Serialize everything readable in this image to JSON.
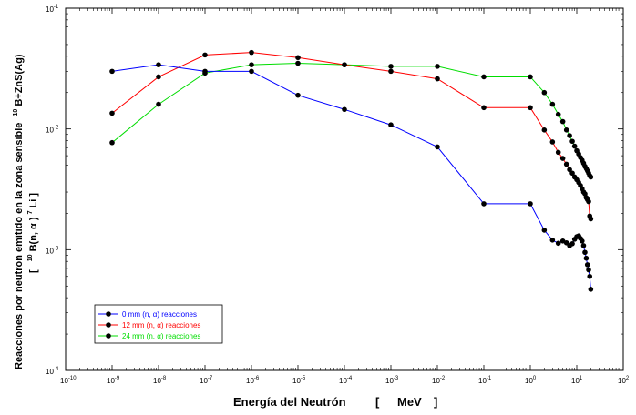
{
  "chart_data": {
    "type": "line",
    "xscale": "log",
    "yscale": "log",
    "xlim": [
      1e-10,
      100
    ],
    "ylim": [
      0.0001,
      0.1
    ],
    "grid": false,
    "legend_position": "bottom-left",
    "xlabel_parts": {
      "main": "Energía del Neutrón",
      "bracket_open": "[",
      "unit": "MeV",
      "bracket_close": "]"
    },
    "ylabel": {
      "line1": "Reacciones por neutron emitido en la zona sensible",
      "sup1": "10",
      "line1_end": "B+ZnS(Ag)",
      "line2_open": "[",
      "sup2": "10",
      "line2_mid": "B(n, α )",
      "sup3": "7",
      "line2_end": "Li ]"
    },
    "x_ticks": [
      {
        "base": "10",
        "exp": "-10"
      },
      {
        "base": "10",
        "exp": "-9"
      },
      {
        "base": "10",
        "exp": "-8"
      },
      {
        "base": "10",
        "exp": "-7"
      },
      {
        "base": "10",
        "exp": "-6"
      },
      {
        "base": "10",
        "exp": "-5"
      },
      {
        "base": "10",
        "exp": "-4"
      },
      {
        "base": "10",
        "exp": "-3"
      },
      {
        "base": "10",
        "exp": "-2"
      },
      {
        "base": "10",
        "exp": "-1"
      },
      {
        "base": "10",
        "exp": "0"
      },
      {
        "base": "10",
        "exp": "1"
      },
      {
        "base": "10",
        "exp": "2"
      }
    ],
    "y_ticks": [
      {
        "base": "10",
        "exp": "-4"
      },
      {
        "base": "10",
        "exp": "-3"
      },
      {
        "base": "10",
        "exp": "-2"
      },
      {
        "base": "10",
        "exp": "-1"
      }
    ],
    "series": [
      {
        "name": "0 mm (n, α) reacciones",
        "color": "#0000ff",
        "x": [
          1e-09,
          1e-08,
          1e-07,
          1e-06,
          1e-05,
          0.0001,
          0.001,
          0.01,
          0.1,
          1,
          2,
          3,
          4,
          5,
          6,
          7,
          8,
          9,
          10,
          11,
          12,
          13,
          14,
          15,
          16,
          17,
          18,
          19,
          20
        ],
        "y": [
          0.03,
          0.034,
          0.03,
          0.03,
          0.019,
          0.0145,
          0.0108,
          0.0071,
          0.0024,
          0.0024,
          0.00145,
          0.0012,
          0.00113,
          0.00118,
          0.00114,
          0.00108,
          0.00112,
          0.00122,
          0.00128,
          0.0013,
          0.00124,
          0.00118,
          0.00108,
          0.00095,
          0.00085,
          0.00075,
          0.00068,
          0.0006,
          0.00047
        ]
      },
      {
        "name": "12 mm (n, α) reacciones",
        "color": "#ff0000",
        "x": [
          1e-09,
          1e-08,
          1e-07,
          1e-06,
          1e-05,
          0.0001,
          0.001,
          0.01,
          0.1,
          1,
          2,
          3,
          4,
          5,
          6,
          7,
          8,
          9,
          10,
          11,
          12,
          13,
          14,
          15,
          16,
          17,
          18,
          19,
          20
        ],
        "y": [
          0.0135,
          0.027,
          0.041,
          0.043,
          0.039,
          0.034,
          0.03,
          0.026,
          0.015,
          0.015,
          0.0098,
          0.0078,
          0.0064,
          0.0057,
          0.0051,
          0.0046,
          0.0043,
          0.004,
          0.0038,
          0.0036,
          0.0034,
          0.0032,
          0.003,
          0.0029,
          0.0027,
          0.0026,
          0.0025,
          0.0019,
          0.0018
        ]
      },
      {
        "name": "24 mm (n, α) reacciones",
        "color": "#00dd00",
        "x": [
          1e-09,
          1e-08,
          1e-07,
          1e-06,
          1e-05,
          0.0001,
          0.001,
          0.01,
          0.1,
          1,
          2,
          3,
          4,
          5,
          6,
          7,
          8,
          9,
          10,
          11,
          12,
          13,
          14,
          15,
          16,
          17,
          18,
          19,
          20
        ],
        "y": [
          0.0077,
          0.016,
          0.029,
          0.034,
          0.035,
          0.034,
          0.033,
          0.033,
          0.027,
          0.027,
          0.02,
          0.016,
          0.0132,
          0.0115,
          0.0098,
          0.0088,
          0.0079,
          0.0072,
          0.0066,
          0.0062,
          0.0058,
          0.0055,
          0.0052,
          0.0049,
          0.0047,
          0.0045,
          0.0043,
          0.0041,
          0.004
        ]
      }
    ]
  }
}
